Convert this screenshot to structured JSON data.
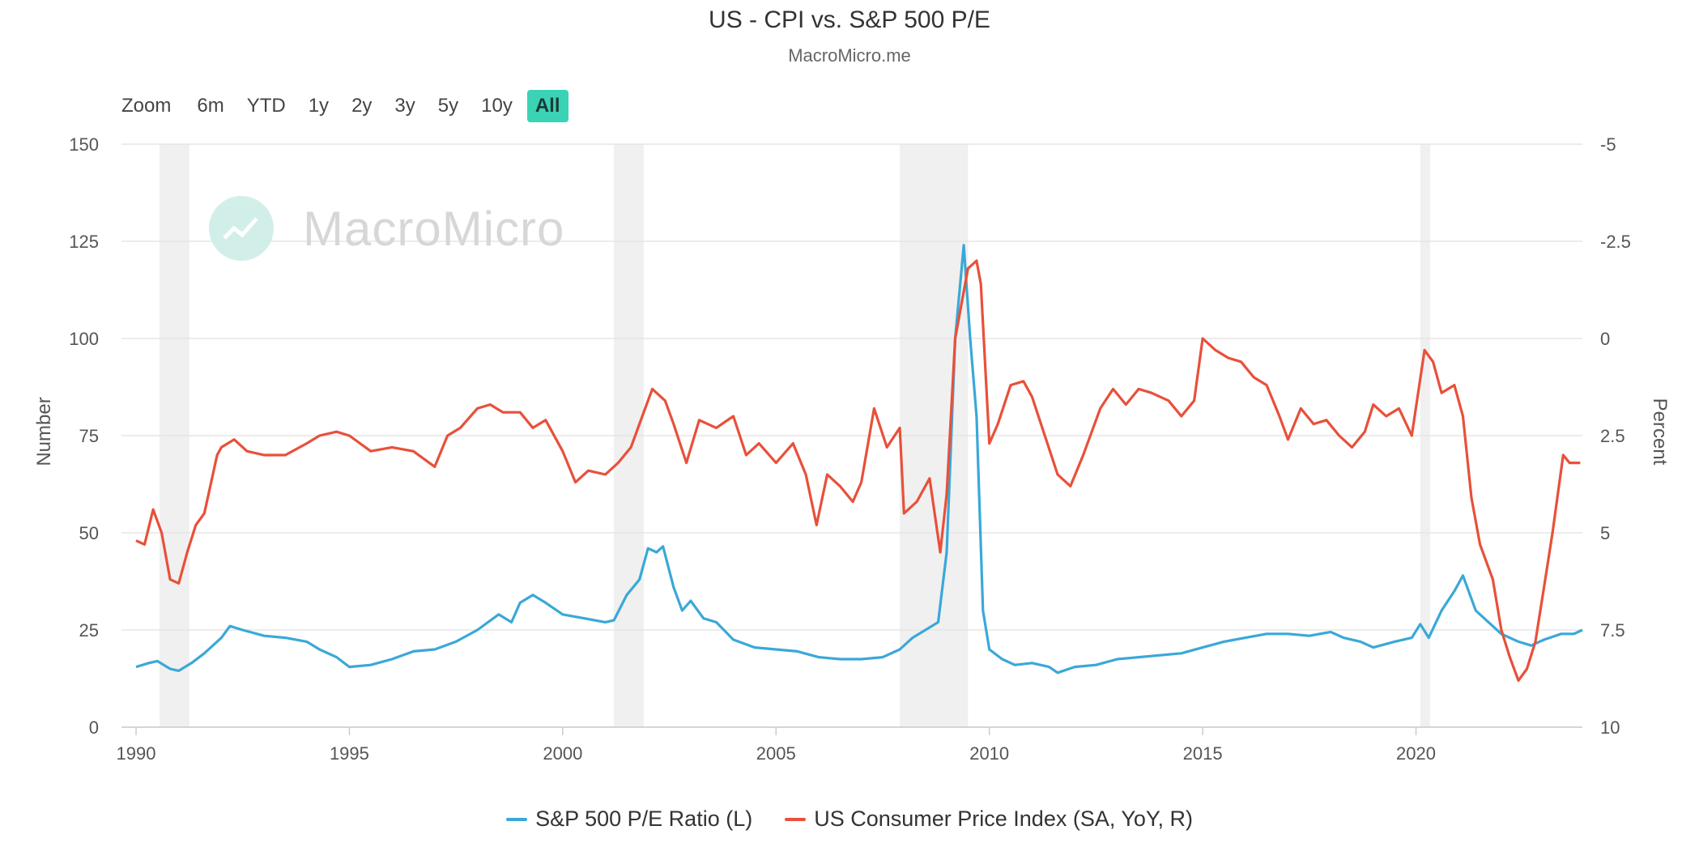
{
  "title": "US - CPI vs. S&P 500 P/E",
  "subtitle": "MacroMicro.me",
  "watermark": "MacroMicro",
  "range_selector": {
    "label": "Zoom",
    "buttons": [
      "6m",
      "YTD",
      "1y",
      "2y",
      "3y",
      "5y",
      "10y",
      "All"
    ],
    "active": "All"
  },
  "colors": {
    "pe": "#3aa8d8",
    "cpi": "#e8503a",
    "recession": "#f0f0f0",
    "grid": "#e6e6e6"
  },
  "chart_data": {
    "type": "line",
    "x_range": [
      1990,
      2023.9
    ],
    "x_ticks": [
      "1990",
      "1995",
      "2000",
      "2005",
      "2010",
      "2015",
      "2020"
    ],
    "y_left": {
      "label": "Number",
      "range": [
        0,
        150
      ],
      "ticks": [
        "0",
        "25",
        "50",
        "75",
        "100",
        "125",
        "150"
      ]
    },
    "y_right": {
      "label": "Percent",
      "range": [
        10,
        -5
      ],
      "inverted": true,
      "ticks": [
        "10",
        "7.5",
        "5",
        "2.5",
        "0",
        "-2.5",
        "-5"
      ]
    },
    "recession_bands": [
      [
        1990.55,
        1991.25
      ],
      [
        2001.2,
        2001.9
      ],
      [
        2007.9,
        2009.5
      ],
      [
        2020.1,
        2020.33
      ]
    ],
    "grid": true,
    "legend_position": "bottom",
    "series": [
      {
        "name": "S&P 500 P/E Ratio (L)",
        "axis": "left",
        "points": [
          [
            1990.0,
            15.5
          ],
          [
            1990.3,
            16.5
          ],
          [
            1990.5,
            17.0
          ],
          [
            1990.8,
            15.0
          ],
          [
            1991.0,
            14.5
          ],
          [
            1991.3,
            16.5
          ],
          [
            1991.6,
            19.0
          ],
          [
            1992.0,
            23.0
          ],
          [
            1992.2,
            26.0
          ],
          [
            1992.5,
            25.0
          ],
          [
            1993.0,
            23.5
          ],
          [
            1993.5,
            23.0
          ],
          [
            1994.0,
            22.0
          ],
          [
            1994.3,
            20.0
          ],
          [
            1994.7,
            18.0
          ],
          [
            1995.0,
            15.5
          ],
          [
            1995.5,
            16.0
          ],
          [
            1996.0,
            17.5
          ],
          [
            1996.5,
            19.5
          ],
          [
            1997.0,
            20.0
          ],
          [
            1997.5,
            22.0
          ],
          [
            1998.0,
            25.0
          ],
          [
            1998.5,
            29.0
          ],
          [
            1998.8,
            27.0
          ],
          [
            1999.0,
            32.0
          ],
          [
            1999.3,
            34.0
          ],
          [
            1999.6,
            32.0
          ],
          [
            2000.0,
            29.0
          ],
          [
            2000.5,
            28.0
          ],
          [
            2001.0,
            27.0
          ],
          [
            2001.2,
            27.5
          ],
          [
            2001.5,
            34.0
          ],
          [
            2001.8,
            38.0
          ],
          [
            2002.0,
            46.0
          ],
          [
            2002.2,
            45.0
          ],
          [
            2002.35,
            46.5
          ],
          [
            2002.6,
            36.0
          ],
          [
            2002.8,
            30.0
          ],
          [
            2003.0,
            32.5
          ],
          [
            2003.3,
            28.0
          ],
          [
            2003.6,
            27.0
          ],
          [
            2004.0,
            22.5
          ],
          [
            2004.5,
            20.5
          ],
          [
            2005.0,
            20.0
          ],
          [
            2005.5,
            19.5
          ],
          [
            2006.0,
            18.0
          ],
          [
            2006.5,
            17.5
          ],
          [
            2007.0,
            17.5
          ],
          [
            2007.5,
            18.0
          ],
          [
            2007.9,
            20.0
          ],
          [
            2008.2,
            23.0
          ],
          [
            2008.5,
            25.0
          ],
          [
            2008.8,
            27.0
          ],
          [
            2009.0,
            45.0
          ],
          [
            2009.2,
            100.0
          ],
          [
            2009.4,
            124.0
          ],
          [
            2009.55,
            100.0
          ],
          [
            2009.7,
            80.0
          ],
          [
            2009.85,
            30.0
          ],
          [
            2010.0,
            20.0
          ],
          [
            2010.3,
            17.5
          ],
          [
            2010.6,
            16.0
          ],
          [
            2011.0,
            16.5
          ],
          [
            2011.4,
            15.5
          ],
          [
            2011.6,
            14.0
          ],
          [
            2012.0,
            15.5
          ],
          [
            2012.5,
            16.0
          ],
          [
            2013.0,
            17.5
          ],
          [
            2013.5,
            18.0
          ],
          [
            2014.0,
            18.5
          ],
          [
            2014.5,
            19.0
          ],
          [
            2015.0,
            20.5
          ],
          [
            2015.5,
            22.0
          ],
          [
            2016.0,
            23.0
          ],
          [
            2016.5,
            24.0
          ],
          [
            2017.0,
            24.0
          ],
          [
            2017.5,
            23.5
          ],
          [
            2018.0,
            24.5
          ],
          [
            2018.3,
            23.0
          ],
          [
            2018.7,
            22.0
          ],
          [
            2019.0,
            20.5
          ],
          [
            2019.5,
            22.0
          ],
          [
            2019.9,
            23.0
          ],
          [
            2020.1,
            26.5
          ],
          [
            2020.3,
            23.0
          ],
          [
            2020.6,
            30.0
          ],
          [
            2020.9,
            35.0
          ],
          [
            2021.1,
            39.0
          ],
          [
            2021.4,
            30.0
          ],
          [
            2021.7,
            27.0
          ],
          [
            2022.0,
            24.0
          ],
          [
            2022.4,
            22.0
          ],
          [
            2022.7,
            21.0
          ],
          [
            2023.0,
            22.5
          ],
          [
            2023.4,
            24.0
          ],
          [
            2023.7,
            24.0
          ],
          [
            2023.9,
            25.0
          ]
        ]
      },
      {
        "name": "US Consumer Price Index (SA, YoY, R)",
        "axis": "right",
        "points": [
          [
            1990.0,
            5.2
          ],
          [
            1990.2,
            5.3
          ],
          [
            1990.4,
            4.4
          ],
          [
            1990.6,
            5.0
          ],
          [
            1990.8,
            6.2
          ],
          [
            1991.0,
            6.3
          ],
          [
            1991.2,
            5.5
          ],
          [
            1991.4,
            4.8
          ],
          [
            1991.6,
            4.5
          ],
          [
            1991.9,
            3.0
          ],
          [
            1992.0,
            2.8
          ],
          [
            1992.3,
            2.6
          ],
          [
            1992.6,
            2.9
          ],
          [
            1993.0,
            3.0
          ],
          [
            1993.5,
            3.0
          ],
          [
            1994.0,
            2.7
          ],
          [
            1994.3,
            2.5
          ],
          [
            1994.7,
            2.4
          ],
          [
            1995.0,
            2.5
          ],
          [
            1995.5,
            2.9
          ],
          [
            1996.0,
            2.8
          ],
          [
            1996.5,
            2.9
          ],
          [
            1997.0,
            3.3
          ],
          [
            1997.3,
            2.5
          ],
          [
            1997.6,
            2.3
          ],
          [
            1998.0,
            1.8
          ],
          [
            1998.3,
            1.7
          ],
          [
            1998.6,
            1.9
          ],
          [
            1999.0,
            1.9
          ],
          [
            1999.3,
            2.3
          ],
          [
            1999.6,
            2.1
          ],
          [
            2000.0,
            2.9
          ],
          [
            2000.3,
            3.7
          ],
          [
            2000.6,
            3.4
          ],
          [
            2001.0,
            3.5
          ],
          [
            2001.3,
            3.2
          ],
          [
            2001.6,
            2.8
          ],
          [
            2001.9,
            1.9
          ],
          [
            2002.1,
            1.3
          ],
          [
            2002.4,
            1.6
          ],
          [
            2002.6,
            2.2
          ],
          [
            2002.9,
            3.2
          ],
          [
            2003.2,
            2.1
          ],
          [
            2003.6,
            2.3
          ],
          [
            2004.0,
            2.0
          ],
          [
            2004.3,
            3.0
          ],
          [
            2004.6,
            2.7
          ],
          [
            2005.0,
            3.2
          ],
          [
            2005.4,
            2.7
          ],
          [
            2005.7,
            3.5
          ],
          [
            2005.95,
            4.8
          ],
          [
            2006.2,
            3.5
          ],
          [
            2006.5,
            3.8
          ],
          [
            2006.8,
            4.2
          ],
          [
            2007.0,
            3.7
          ],
          [
            2007.3,
            1.8
          ],
          [
            2007.6,
            2.8
          ],
          [
            2007.9,
            2.3
          ],
          [
            2008.0,
            4.5
          ],
          [
            2008.3,
            4.2
          ],
          [
            2008.6,
            3.6
          ],
          [
            2008.85,
            5.5
          ],
          [
            2009.0,
            4.0
          ],
          [
            2009.2,
            0.0
          ],
          [
            2009.5,
            -1.8
          ],
          [
            2009.7,
            -2.0
          ],
          [
            2009.8,
            -1.4
          ],
          [
            2010.0,
            2.7
          ],
          [
            2010.2,
            2.2
          ],
          [
            2010.5,
            1.2
          ],
          [
            2010.8,
            1.1
          ],
          [
            2011.0,
            1.5
          ],
          [
            2011.3,
            2.5
          ],
          [
            2011.6,
            3.5
          ],
          [
            2011.9,
            3.8
          ],
          [
            2012.2,
            3.0
          ],
          [
            2012.6,
            1.8
          ],
          [
            2012.9,
            1.3
          ],
          [
            2013.2,
            1.7
          ],
          [
            2013.5,
            1.3
          ],
          [
            2013.8,
            1.4
          ],
          [
            2014.2,
            1.6
          ],
          [
            2014.5,
            2.0
          ],
          [
            2014.8,
            1.6
          ],
          [
            2015.0,
            0.0
          ],
          [
            2015.3,
            0.3
          ],
          [
            2015.6,
            0.5
          ],
          [
            2015.9,
            0.6
          ],
          [
            2016.2,
            1.0
          ],
          [
            2016.5,
            1.2
          ],
          [
            2016.8,
            2.0
          ],
          [
            2017.0,
            2.6
          ],
          [
            2017.3,
            1.8
          ],
          [
            2017.6,
            2.2
          ],
          [
            2017.9,
            2.1
          ],
          [
            2018.2,
            2.5
          ],
          [
            2018.5,
            2.8
          ],
          [
            2018.8,
            2.4
          ],
          [
            2019.0,
            1.7
          ],
          [
            2019.3,
            2.0
          ],
          [
            2019.6,
            1.8
          ],
          [
            2019.9,
            2.5
          ],
          [
            2020.2,
            0.3
          ],
          [
            2020.4,
            0.6
          ],
          [
            2020.6,
            1.4
          ],
          [
            2020.9,
            1.2
          ],
          [
            2021.1,
            2.0
          ],
          [
            2021.3,
            4.1
          ],
          [
            2021.5,
            5.3
          ],
          [
            2021.8,
            6.2
          ],
          [
            2022.0,
            7.5
          ],
          [
            2022.2,
            8.2
          ],
          [
            2022.4,
            8.8
          ],
          [
            2022.6,
            8.5
          ],
          [
            2022.8,
            7.8
          ],
          [
            2023.0,
            6.4
          ],
          [
            2023.2,
            5.0
          ],
          [
            2023.45,
            3.0
          ],
          [
            2023.6,
            3.2
          ],
          [
            2023.85,
            3.2
          ]
        ]
      }
    ]
  }
}
